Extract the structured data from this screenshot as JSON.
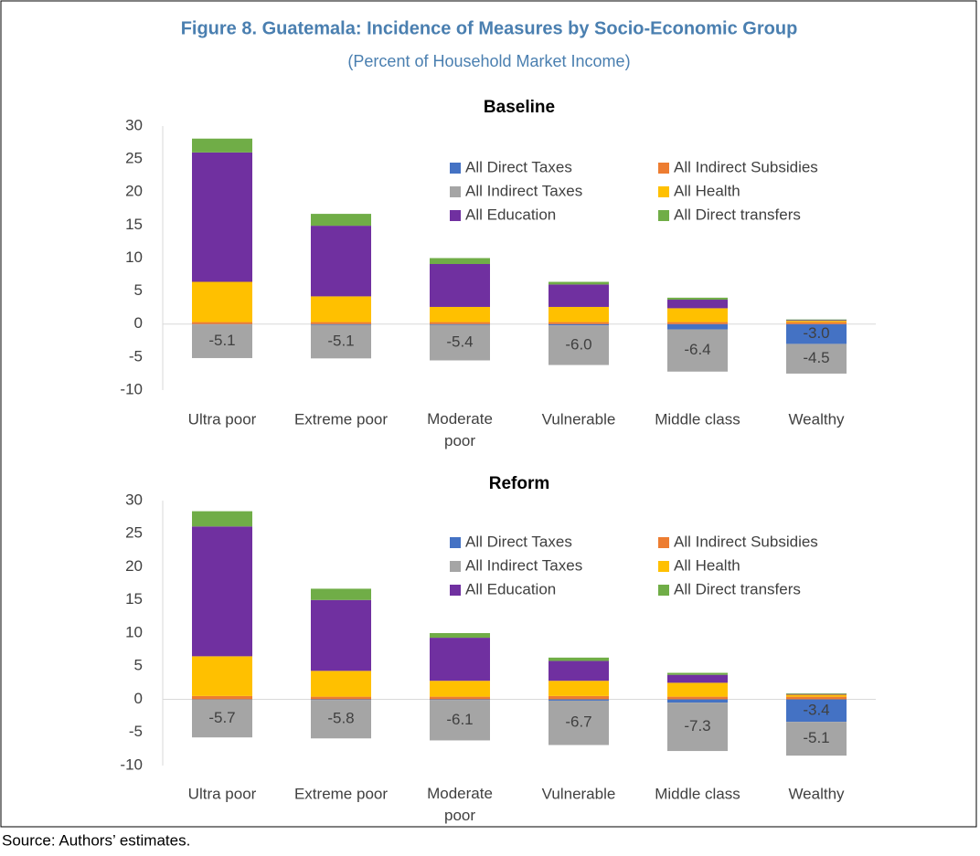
{
  "figure_title": "Figure 8. Guatemala: Incidence of Measures by Socio-Economic Group",
  "subtitle": "(Percent of Household Market Income)",
  "source": "Source: Authors’ estimates.",
  "chart_data": [
    {
      "type": "bar",
      "stacked": true,
      "title": "Baseline",
      "categories": [
        "Ultra poor",
        "Extreme poor",
        "Moderate poor",
        "Vulnerable",
        "Middle class",
        "Wealthy"
      ],
      "ylim": [
        -10,
        30
      ],
      "yticks": [
        -10,
        -5,
        0,
        5,
        10,
        15,
        20,
        25,
        30
      ],
      "grid": false,
      "legend": "top-right",
      "series": [
        {
          "name": "All Direct Taxes",
          "color": "#4472c4",
          "values": [
            -0.05,
            -0.1,
            -0.1,
            -0.2,
            -0.8,
            -3.0
          ],
          "value_labels": [
            null,
            null,
            null,
            null,
            null,
            "-3.0"
          ]
        },
        {
          "name": "All Indirect Subsidies",
          "color": "#ed7d31",
          "values": [
            0.3,
            0.3,
            0.3,
            0.3,
            0.3,
            0.3
          ]
        },
        {
          "name": "All Indirect Taxes",
          "color": "#a5a5a5",
          "values": [
            -5.1,
            -5.1,
            -5.4,
            -6.0,
            -6.4,
            -4.5
          ],
          "value_labels": [
            "-5.1",
            "-5.1",
            "-5.4",
            "-6.0",
            "-6.4",
            "-4.5"
          ]
        },
        {
          "name": "All Health",
          "color": "#ffc000",
          "values": [
            6.1,
            3.9,
            2.3,
            2.3,
            2.1,
            0.2
          ]
        },
        {
          "name": "All Education",
          "color": "#7030a0",
          "values": [
            19.6,
            10.7,
            6.5,
            3.4,
            1.3,
            0.1
          ]
        },
        {
          "name": "All Direct transfers",
          "color": "#70ad47",
          "values": [
            2.1,
            1.8,
            0.9,
            0.4,
            0.3,
            0.1
          ]
        }
      ]
    },
    {
      "type": "bar",
      "stacked": true,
      "title": "Reform",
      "categories": [
        "Ultra poor",
        "Extreme poor",
        "Moderate poor",
        "Vulnerable",
        "Middle class",
        "Wealthy"
      ],
      "ylim": [
        -10,
        30
      ],
      "yticks": [
        -10,
        -5,
        0,
        5,
        10,
        15,
        20,
        25,
        30
      ],
      "grid": false,
      "legend": "top-right",
      "series": [
        {
          "name": "All Direct Taxes",
          "color": "#4472c4",
          "values": [
            -0.05,
            -0.1,
            -0.1,
            -0.2,
            -0.5,
            -3.4
          ],
          "value_labels": [
            null,
            null,
            null,
            null,
            null,
            "-3.4"
          ]
        },
        {
          "name": "All Indirect Subsidies",
          "color": "#ed7d31",
          "values": [
            0.5,
            0.4,
            0.4,
            0.5,
            0.4,
            0.4
          ]
        },
        {
          "name": "All Indirect Taxes",
          "color": "#a5a5a5",
          "values": [
            -5.7,
            -5.8,
            -6.1,
            -6.7,
            -7.3,
            -5.1
          ],
          "value_labels": [
            "-5.7",
            "-5.8",
            "-6.1",
            "-6.7",
            "-7.3",
            "-5.1"
          ]
        },
        {
          "name": "All Health",
          "color": "#ffc000",
          "values": [
            6.0,
            3.9,
            2.4,
            2.3,
            2.1,
            0.3
          ]
        },
        {
          "name": "All Education",
          "color": "#7030a0",
          "values": [
            19.6,
            10.7,
            6.5,
            3.0,
            1.2,
            0.1
          ]
        },
        {
          "name": "All Direct transfers",
          "color": "#70ad47",
          "values": [
            2.3,
            1.7,
            0.7,
            0.5,
            0.3,
            0.1
          ]
        }
      ]
    }
  ]
}
